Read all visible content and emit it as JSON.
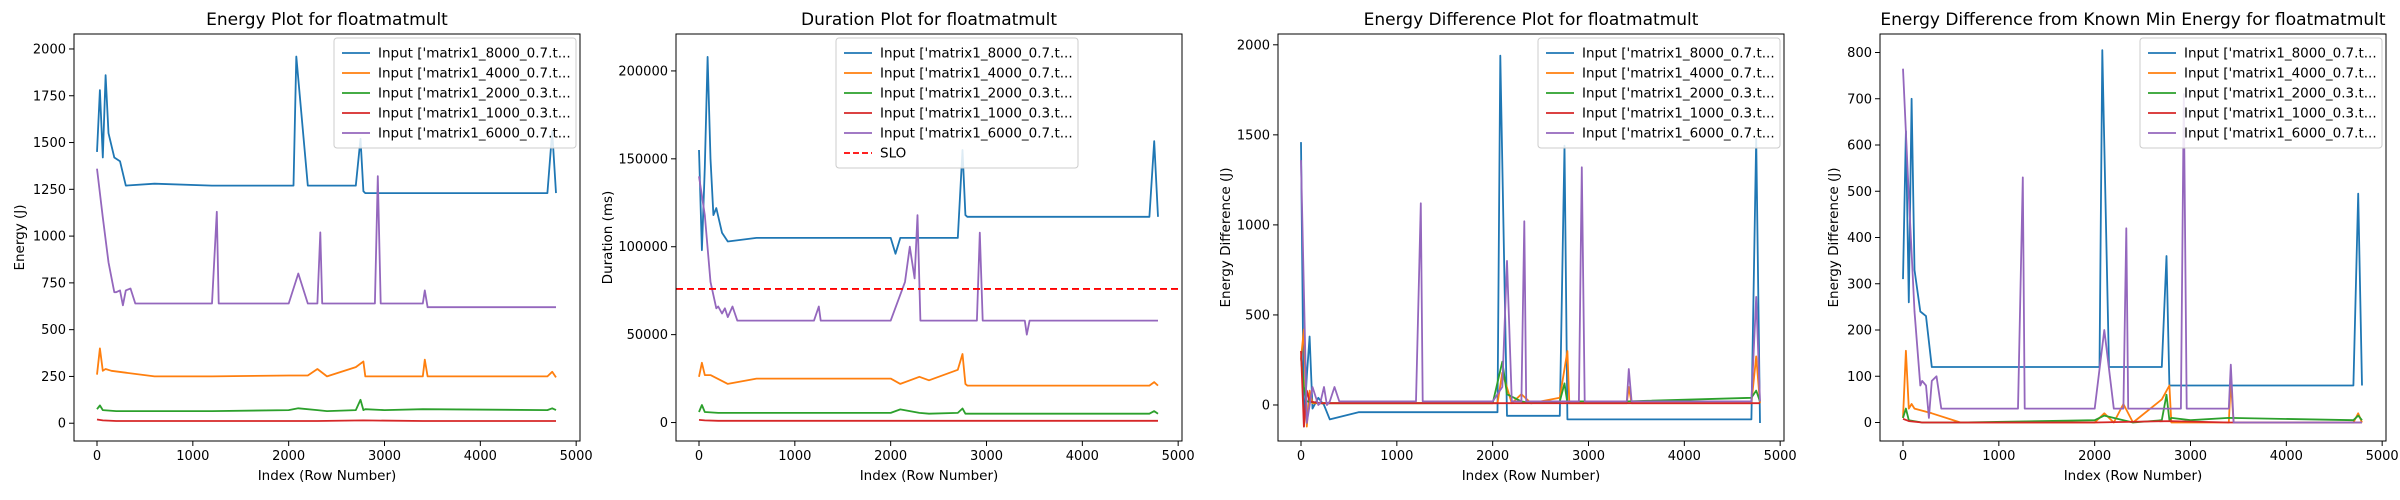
{
  "chart_data": [
    {
      "type": "line",
      "title": "Energy Plot for floatmatmult",
      "xlabel": "Index (Row Number)",
      "ylabel": "Energy (J)",
      "xlim": [
        -240,
        5040
      ],
      "ylim": [
        -95,
        2080
      ],
      "xticks": [
        0,
        1000,
        2000,
        3000,
        4000,
        5000
      ],
      "yticks": [
        0,
        250,
        500,
        750,
        1000,
        1250,
        1500,
        1750,
        2000
      ],
      "legend_loc": "upper right",
      "series": [
        {
          "name": "Input ['matrix1_8000_0.7.t...",
          "color": "#1f77b4",
          "x": [
            0,
            30,
            60,
            90,
            120,
            180,
            240,
            300,
            600,
            1200,
            1800,
            2050,
            2080,
            2200,
            2300,
            2700,
            2750,
            2780,
            2800,
            3400,
            4700,
            4750,
            4790
          ],
          "y": [
            1450,
            1780,
            1420,
            1860,
            1550,
            1420,
            1400,
            1270,
            1280,
            1270,
            1270,
            1270,
            1960,
            1270,
            1270,
            1270,
            1520,
            1240,
            1230,
            1230,
            1230,
            1560,
            1230
          ]
        },
        {
          "name": "Input ['matrix1_4000_0.7.t...",
          "color": "#ff7f0e",
          "x": [
            0,
            30,
            60,
            90,
            150,
            300,
            600,
            1200,
            2000,
            2200,
            2300,
            2400,
            2700,
            2780,
            2800,
            3400,
            3420,
            3450,
            4700,
            4750,
            4790
          ],
          "y": [
            260,
            400,
            280,
            290,
            280,
            270,
            250,
            250,
            255,
            255,
            290,
            250,
            300,
            330,
            250,
            250,
            340,
            250,
            250,
            275,
            245
          ]
        },
        {
          "name": "Input ['matrix1_2000_0.3.t...",
          "color": "#2ca02c",
          "x": [
            0,
            30,
            60,
            200,
            600,
            1200,
            2000,
            2100,
            2300,
            2400,
            2700,
            2750,
            2780,
            2800,
            3000,
            3400,
            4700,
            4750,
            4790
          ],
          "y": [
            75,
            95,
            70,
            65,
            65,
            65,
            70,
            80,
            70,
            65,
            70,
            125,
            70,
            75,
            70,
            75,
            70,
            80,
            70
          ]
        },
        {
          "name": "Input ['matrix1_1000_0.3.t...",
          "color": "#d62728",
          "x": [
            0,
            60,
            200,
            600,
            2000,
            2300,
            2780,
            3400,
            4790
          ],
          "y": [
            20,
            15,
            12,
            12,
            12,
            12,
            15,
            12,
            12
          ]
        },
        {
          "name": "Input ['matrix1_6000_0.7.t...",
          "color": "#9467bd",
          "x": [
            0,
            60,
            120,
            180,
            200,
            240,
            270,
            300,
            350,
            400,
            1200,
            1250,
            1270,
            2000,
            2100,
            2200,
            2300,
            2330,
            2350,
            2800,
            2900,
            2930,
            2960,
            3400,
            3420,
            3450,
            4790
          ],
          "y": [
            1360,
            1100,
            860,
            700,
            700,
            710,
            630,
            710,
            720,
            640,
            640,
            1130,
            640,
            640,
            800,
            640,
            640,
            1020,
            640,
            640,
            640,
            1320,
            640,
            640,
            710,
            620,
            620
          ]
        }
      ]
    },
    {
      "type": "line",
      "title": "Duration Plot for floatmatmult",
      "xlabel": "Index (Row Number)",
      "ylabel": "Duration (ms)",
      "xlim": [
        -240,
        5040
      ],
      "ylim": [
        -10500,
        221000
      ],
      "xticks": [
        0,
        1000,
        2000,
        3000,
        4000,
        5000
      ],
      "yticks": [
        0,
        50000,
        100000,
        150000,
        200000
      ],
      "legend_loc": "upper center",
      "slo": {
        "name": "SLO",
        "value": 76000,
        "color": "#ff0000"
      },
      "series": [
        {
          "name": "Input ['matrix1_8000_0.7.t...",
          "color": "#1f77b4",
          "x": [
            0,
            30,
            60,
            90,
            120,
            150,
            180,
            240,
            300,
            600,
            1200,
            2000,
            2050,
            2100,
            2200,
            2300,
            2700,
            2750,
            2780,
            2800,
            3400,
            4700,
            4750,
            4790
          ],
          "y": [
            155000,
            98000,
            145000,
            208000,
            150000,
            118000,
            122000,
            108000,
            103000,
            105000,
            105000,
            105000,
            96000,
            105000,
            105000,
            105000,
            105000,
            155000,
            118000,
            117000,
            117000,
            117000,
            160000,
            117000
          ]
        },
        {
          "name": "Input ['matrix1_4000_0.7.t...",
          "color": "#ff7f0e",
          "x": [
            0,
            30,
            60,
            120,
            300,
            600,
            1200,
            2000,
            2100,
            2300,
            2400,
            2700,
            2750,
            2780,
            2800,
            3400,
            4700,
            4750,
            4790
          ],
          "y": [
            26000,
            34000,
            27000,
            27000,
            22000,
            25000,
            25000,
            25000,
            22000,
            26000,
            24000,
            30000,
            39000,
            22000,
            21000,
            21000,
            21000,
            23000,
            21000
          ]
        },
        {
          "name": "Input ['matrix1_2000_0.3.t...",
          "color": "#2ca02c",
          "x": [
            0,
            30,
            60,
            200,
            600,
            1200,
            2000,
            2100,
            2300,
            2400,
            2700,
            2750,
            2780,
            2800,
            3400,
            4700,
            4750,
            4790
          ],
          "y": [
            6000,
            10000,
            6000,
            5500,
            5500,
            5500,
            5500,
            7500,
            5500,
            5000,
            5500,
            8000,
            5000,
            5000,
            5000,
            5000,
            6500,
            5000
          ]
        },
        {
          "name": "Input ['matrix1_1000_0.3.t...",
          "color": "#d62728",
          "x": [
            0,
            60,
            200,
            600,
            2000,
            2300,
            2780,
            3400,
            4790
          ],
          "y": [
            1500,
            1200,
            1000,
            1000,
            1000,
            1000,
            1000,
            1000,
            1000
          ]
        },
        {
          "name": "Input ['matrix1_6000_0.7.t...",
          "color": "#9467bd",
          "x": [
            0,
            60,
            120,
            180,
            200,
            240,
            270,
            300,
            350,
            400,
            1200,
            1250,
            1270,
            2000,
            2150,
            2200,
            2250,
            2280,
            2310,
            2900,
            2930,
            2960,
            3400,
            3420,
            3450,
            4790
          ],
          "y": [
            140000,
            118000,
            80000,
            65000,
            66000,
            62000,
            65000,
            60000,
            66000,
            58000,
            58000,
            66000,
            58000,
            58000,
            80000,
            100000,
            82000,
            118000,
            58000,
            58000,
            108000,
            58000,
            58000,
            50000,
            58000,
            58000
          ]
        }
      ]
    },
    {
      "type": "line",
      "title": "Energy Difference Plot for floatmatmult",
      "xlabel": "Index (Row Number)",
      "ylabel": "Energy Difference (J)",
      "xlim": [
        -240,
        5040
      ],
      "ylim": [
        -200,
        2060
      ],
      "xticks": [
        0,
        1000,
        2000,
        3000,
        4000,
        5000
      ],
      "yticks": [
        0,
        500,
        1000,
        1500,
        2000
      ],
      "legend_loc": "upper right",
      "series": [
        {
          "name": "Input ['matrix1_8000_0.7.t...",
          "color": "#1f77b4",
          "x": [
            0,
            30,
            60,
            90,
            120,
            180,
            240,
            300,
            600,
            1200,
            2050,
            2080,
            2150,
            2300,
            2700,
            2750,
            2780,
            2800,
            3400,
            4700,
            4750,
            4790
          ],
          "y": [
            1460,
            -120,
            160,
            380,
            -20,
            40,
            0,
            -80,
            -40,
            -40,
            -40,
            1940,
            -60,
            -60,
            -60,
            1440,
            -80,
            -80,
            -80,
            -80,
            1480,
            -100
          ]
        },
        {
          "name": "Input ['matrix1_4000_0.7.t...",
          "color": "#ff7f0e",
          "x": [
            0,
            30,
            60,
            90,
            120,
            300,
            2050,
            2100,
            2200,
            2300,
            2400,
            2700,
            2780,
            2800,
            3400,
            3420,
            3450,
            4700,
            4750,
            4790
          ],
          "y": [
            260,
            420,
            -120,
            80,
            10,
            10,
            10,
            180,
            10,
            60,
            10,
            40,
            300,
            10,
            10,
            100,
            10,
            10,
            270,
            10
          ]
        },
        {
          "name": "Input ['matrix1_2000_0.3.t...",
          "color": "#2ca02c",
          "x": [
            0,
            30,
            60,
            200,
            600,
            2000,
            2100,
            2150,
            2300,
            2400,
            2700,
            2750,
            2780,
            2800,
            3400,
            4700,
            4750,
            4790
          ],
          "y": [
            260,
            100,
            20,
            10,
            10,
            10,
            240,
            60,
            20,
            10,
            20,
            120,
            10,
            20,
            20,
            40,
            80,
            20
          ]
        },
        {
          "name": "Input ['matrix1_1000_0.3.t...",
          "color": "#d62728",
          "x": [
            0,
            30,
            60,
            90,
            200,
            600,
            2000,
            2780,
            3400,
            4790
          ],
          "y": [
            300,
            -120,
            80,
            20,
            10,
            10,
            10,
            10,
            10,
            10
          ]
        },
        {
          "name": "Input ['matrix1_6000_0.7.t...",
          "color": "#9467bd",
          "x": [
            0,
            60,
            120,
            180,
            200,
            240,
            270,
            300,
            350,
            400,
            1200,
            1250,
            1270,
            2000,
            2100,
            2150,
            2200,
            2300,
            2330,
            2350,
            2900,
            2930,
            2960,
            3400,
            3420,
            3450,
            4700,
            4750,
            4790
          ],
          "y": [
            1360,
            -100,
            100,
            0,
            10,
            100,
            0,
            20,
            100,
            20,
            20,
            1120,
            20,
            20,
            100,
            800,
            20,
            20,
            1020,
            20,
            20,
            1320,
            20,
            20,
            200,
            20,
            20,
            600,
            20
          ]
        }
      ]
    },
    {
      "type": "line",
      "title": "Energy Difference from Known Min Energy for floatmatmult",
      "xlabel": "Index (Row Number)",
      "ylabel": "Energy Difference (J)",
      "xlim": [
        -240,
        5040
      ],
      "ylim": [
        -40,
        840
      ],
      "xticks": [
        0,
        1000,
        2000,
        3000,
        4000,
        5000
      ],
      "yticks": [
        0,
        100,
        200,
        300,
        400,
        500,
        600,
        700,
        800
      ],
      "legend_loc": "upper right",
      "series": [
        {
          "name": "Input ['matrix1_8000_0.7.t...",
          "color": "#1f77b4",
          "x": [
            0,
            30,
            60,
            90,
            120,
            180,
            240,
            300,
            600,
            1200,
            2050,
            2080,
            2150,
            2300,
            2700,
            2750,
            2780,
            2800,
            3400,
            4700,
            4750,
            4790
          ],
          "y": [
            310,
            630,
            260,
            700,
            330,
            240,
            230,
            120,
            120,
            120,
            120,
            805,
            120,
            120,
            120,
            360,
            80,
            80,
            80,
            80,
            495,
            80
          ]
        },
        {
          "name": "Input ['matrix1_4000_0.7.t...",
          "color": "#ff7f0e",
          "x": [
            0,
            30,
            60,
            90,
            120,
            300,
            600,
            2000,
            2100,
            2200,
            2300,
            2400,
            2700,
            2780,
            2800,
            3400,
            3420,
            3450,
            4700,
            4750,
            4790
          ],
          "y": [
            10,
            155,
            30,
            40,
            30,
            20,
            0,
            0,
            20,
            0,
            40,
            0,
            50,
            80,
            0,
            0,
            90,
            0,
            0,
            20,
            0
          ]
        },
        {
          "name": "Input ['matrix1_2000_0.3.t...",
          "color": "#2ca02c",
          "x": [
            0,
            30,
            60,
            200,
            600,
            2000,
            2100,
            2300,
            2400,
            2700,
            2750,
            2780,
            2800,
            3000,
            3400,
            4700,
            4750,
            4790
          ],
          "y": [
            10,
            30,
            5,
            0,
            0,
            5,
            15,
            5,
            0,
            5,
            60,
            5,
            10,
            5,
            10,
            5,
            15,
            5
          ]
        },
        {
          "name": "Input ['matrix1_1000_0.3.t...",
          "color": "#d62728",
          "x": [
            0,
            60,
            200,
            600,
            2000,
            2780,
            3400,
            4790
          ],
          "y": [
            8,
            3,
            0,
            0,
            0,
            3,
            0,
            0
          ]
        },
        {
          "name": "Input ['matrix1_6000_0.7.t...",
          "color": "#9467bd",
          "x": [
            0,
            60,
            120,
            180,
            200,
            240,
            270,
            300,
            350,
            400,
            1200,
            1250,
            1270,
            2000,
            2100,
            2200,
            2300,
            2330,
            2350,
            2900,
            2930,
            2960,
            3400,
            3420,
            3450,
            4790
          ],
          "y": [
            765,
            490,
            240,
            80,
            90,
            80,
            10,
            90,
            100,
            30,
            30,
            530,
            30,
            30,
            200,
            30,
            30,
            420,
            30,
            30,
            710,
            30,
            30,
            125,
            0,
            0
          ]
        }
      ]
    }
  ]
}
